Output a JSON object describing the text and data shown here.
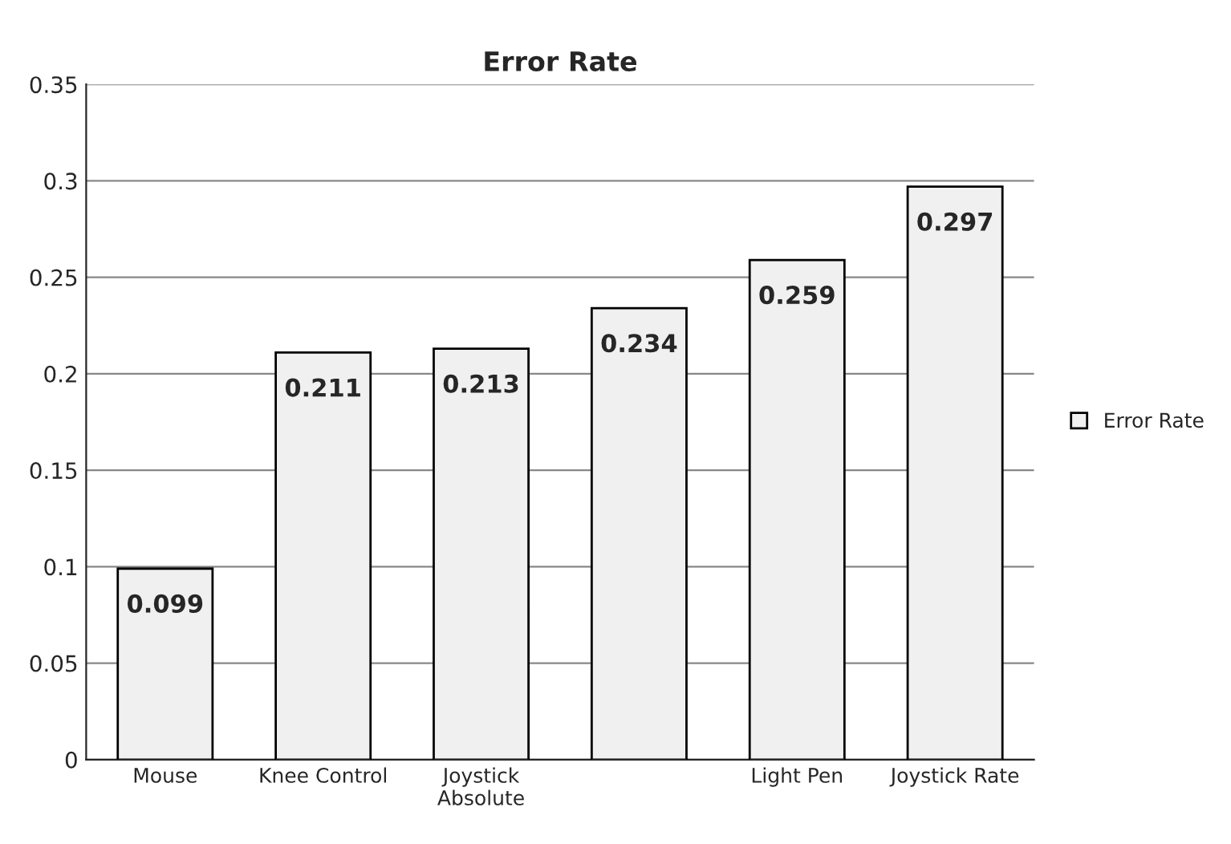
{
  "chart_data": {
    "type": "bar",
    "title": "Error Rate",
    "categories": [
      "Mouse",
      "Knee Control",
      "Joystick\nAbsolute",
      null,
      "Light Pen",
      "Joystick Rate"
    ],
    "series": [
      {
        "name": "Error Rate",
        "color": "#f0f0f0",
        "values": [
          0.099,
          0.211,
          0.213,
          0.234,
          0.259,
          0.297
        ]
      }
    ],
    "ylim": [
      0,
      0.35
    ],
    "yticks": [
      0,
      0.05,
      0.1,
      0.15,
      0.2,
      0.25,
      0.3,
      0.35
    ],
    "grid": "y",
    "legend": "right",
    "data_labels": true
  }
}
